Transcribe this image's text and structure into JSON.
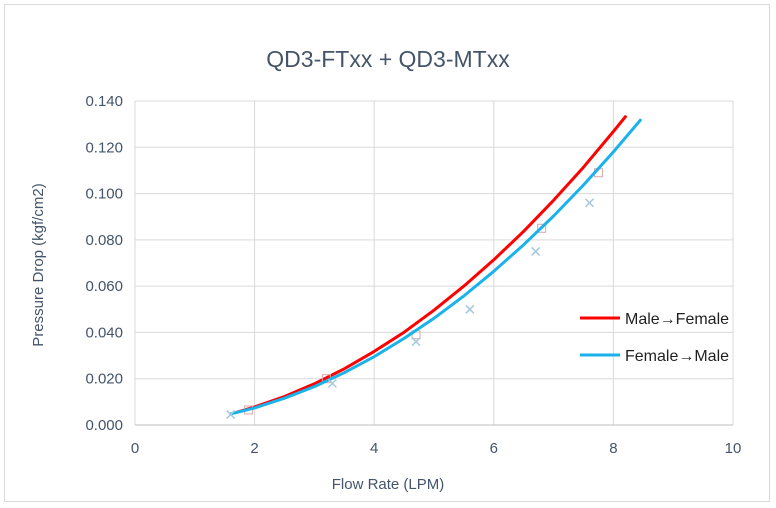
{
  "chart_data": {
    "type": "scatter",
    "title": "QD3-FTxx + QD3-MTxx",
    "xlabel": "Flow Rate (LPM)",
    "ylabel": "Pressure Drop (kgf/cm2)",
    "xlim": [
      0,
      10
    ],
    "ylim": [
      0,
      0.14
    ],
    "x_ticks": [
      "0",
      "2",
      "4",
      "6",
      "8",
      "10"
    ],
    "y_ticks": [
      "0.000",
      "0.020",
      "0.040",
      "0.060",
      "0.080",
      "0.100",
      "0.120",
      "0.140"
    ],
    "grid": true,
    "legend_position": "right",
    "series": [
      {
        "name": "Male→Female",
        "color": "#ff0000",
        "marker": "square",
        "points": [
          [
            1.9,
            0.0065
          ],
          [
            3.2,
            0.02
          ],
          [
            4.7,
            0.039
          ],
          [
            6.8,
            0.085
          ],
          [
            7.75,
            0.109
          ]
        ],
        "trend_x": [
          1.7,
          2,
          2.5,
          3,
          3.5,
          4,
          4.5,
          5,
          5.5,
          6,
          6.5,
          7,
          7.5,
          8,
          8.2
        ],
        "trend_y": [
          0.0055,
          0.0078,
          0.0123,
          0.0178,
          0.0243,
          0.0318,
          0.0401,
          0.0496,
          0.06,
          0.0714,
          0.0837,
          0.0971,
          0.1114,
          0.1268,
          0.1332
        ]
      },
      {
        "name": "Female→Male",
        "color": "#1ab2ea",
        "marker": "x",
        "points": [
          [
            1.6,
            0.0045
          ],
          [
            3.3,
            0.018
          ],
          [
            4.7,
            0.036
          ],
          [
            5.6,
            0.05
          ],
          [
            6.7,
            0.075
          ],
          [
            7.6,
            0.096
          ]
        ],
        "trend_x": [
          1.6,
          2,
          2.5,
          3,
          3.5,
          4,
          4.5,
          5,
          5.5,
          6,
          6.5,
          7,
          7.5,
          8,
          8.45
        ],
        "trend_y": [
          0.0048,
          0.0074,
          0.0116,
          0.0166,
          0.0226,
          0.0295,
          0.0374,
          0.0461,
          0.0558,
          0.0664,
          0.0779,
          0.0903,
          0.1037,
          0.118,
          0.1317
        ]
      }
    ]
  }
}
